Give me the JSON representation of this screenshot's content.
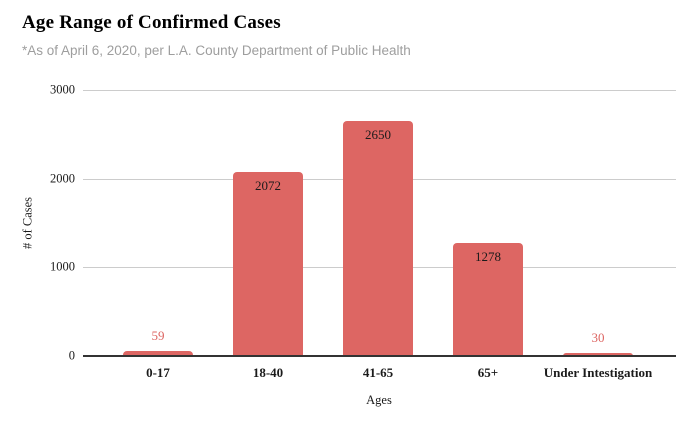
{
  "chart_data": {
    "type": "bar",
    "title": "Age Range of Confirmed Cases",
    "subtitle": "*As of April 6, 2020, per L.A. County Department of Public Health",
    "categories": [
      "0-17",
      "18-40",
      "41-65",
      "65+",
      "Under Intestigation"
    ],
    "values": [
      59,
      2072,
      2650,
      1278,
      30
    ],
    "xlabel": "Ages",
    "ylabel": "# of Cases",
    "ylim": [
      0,
      3000
    ],
    "yticks": [
      0,
      1000,
      2000,
      3000
    ],
    "grid": true,
    "legend": "none",
    "colors": {
      "bar": "#dd6663",
      "label_inside": "#1b1b1b",
      "label_outside": "#dd6663",
      "gridline": "#cccccc",
      "axis": "#333333",
      "subtitle": "#9e9e9e"
    }
  }
}
